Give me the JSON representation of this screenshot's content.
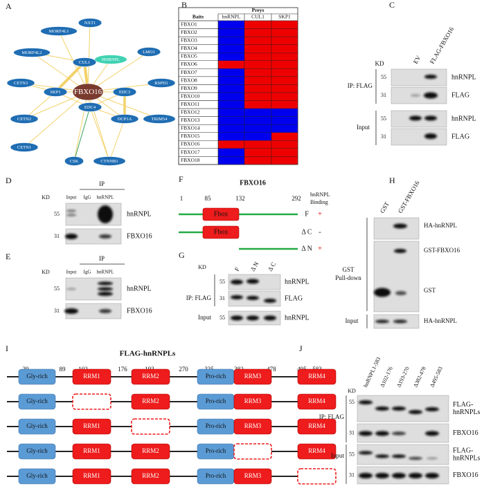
{
  "panel_labels": [
    "A",
    "B",
    "C",
    "D",
    "E",
    "F",
    "G",
    "H",
    "I",
    "J"
  ],
  "network": {
    "nodes": [
      "NXT1",
      "MORF4L1",
      "MORF4L2",
      "CUL1",
      "HNRNPL",
      "LMO1",
      "CETN3",
      "SKP1",
      "FBXO16",
      "EDC3",
      "RSPH1",
      "CETN2",
      "EDC4",
      "DCP1A",
      "TRIM54",
      "CETN1",
      "CSK",
      "CTNNB1"
    ]
  },
  "table": {
    "group_header": "Preys",
    "row_header": "Baits",
    "columns": [
      "hnRNPL",
      "CUL1",
      "SKP1"
    ],
    "rows": [
      {
        "bait": "FBXO1",
        "cells": [
          "#0000ee",
          "#ee0000",
          "#ee0000"
        ]
      },
      {
        "bait": "FBXO2",
        "cells": [
          "#0000ee",
          "#ee0000",
          "#ee0000"
        ]
      },
      {
        "bait": "FBXO3",
        "cells": [
          "#0000ee",
          "#ee0000",
          "#ee0000"
        ]
      },
      {
        "bait": "FBXO4",
        "cells": [
          "#0000ee",
          "#ee0000",
          "#ee0000"
        ]
      },
      {
        "bait": "FBXO5",
        "cells": [
          "#0000ee",
          "#ee0000",
          "#ee0000"
        ]
      },
      {
        "bait": "FBXO6",
        "cells": [
          "#ee0000",
          "#ee0000",
          "#ee0000"
        ]
      },
      {
        "bait": "FBXO7",
        "cells": [
          "#0000ee",
          "#ee0000",
          "#ee0000"
        ]
      },
      {
        "bait": "FBXO8",
        "cells": [
          "#0000ee",
          "#ee0000",
          "#ee0000"
        ]
      },
      {
        "bait": "FBXO9",
        "cells": [
          "#0000ee",
          "#ee0000",
          "#ee0000"
        ]
      },
      {
        "bait": "FBXO10",
        "cells": [
          "#0000ee",
          "#ee0000",
          "#ee0000"
        ]
      },
      {
        "bait": "FBXO11",
        "cells": [
          "#0000ee",
          "#ee0000",
          "#ee0000"
        ]
      },
      {
        "bait": "FBXO12",
        "cells": [
          "#0000ee",
          "#0000ee",
          "#0000ee"
        ]
      },
      {
        "bait": "FBXO13",
        "cells": [
          "#0000ee",
          "#0000ee",
          "#0000ee"
        ]
      },
      {
        "bait": "FBXO14",
        "cells": [
          "#0000ee",
          "#0000ee",
          "#0000ee"
        ]
      },
      {
        "bait": "FBXO15",
        "cells": [
          "#0000ee",
          "#0000ee",
          "#ee0000"
        ]
      },
      {
        "bait": "FBXO16",
        "cells": [
          "#ee0000",
          "#ee0000",
          "#ee0000"
        ]
      },
      {
        "bait": "FBXO17",
        "cells": [
          "#0000ee",
          "#ee0000",
          "#ee0000"
        ]
      },
      {
        "bait": "FBXO18",
        "cells": [
          "#0000ee",
          "#ee0000",
          "#ee0000"
        ]
      }
    ]
  },
  "panel_c": {
    "kd": "KD",
    "lanes": [
      "EV",
      "FLAG-FBXO16"
    ],
    "ip": "IP: FLAG",
    "input": "Input",
    "rows": [
      {
        "kd": "55",
        "label": "hnRNPL"
      },
      {
        "kd": "31",
        "label": "FLAG"
      },
      {
        "kd": "55",
        "label": "hnRNPL"
      },
      {
        "kd": "31",
        "label": "FLAG"
      }
    ]
  },
  "panel_d": {
    "kd": "KD",
    "ip": "IP",
    "lanes": [
      "Input",
      "IgG",
      "hnRNPL"
    ],
    "rows": [
      {
        "kd": "55",
        "label": "hnRNPL"
      },
      {
        "kd": "31",
        "label": "FBXO16"
      }
    ]
  },
  "panel_e": {
    "kd": "KD",
    "ip": "IP",
    "lanes": [
      "Input",
      "IgG",
      "hnRNPL"
    ],
    "rows": [
      {
        "kd": "55",
        "label": "hnRNPL"
      },
      {
        "kd": "31",
        "label": "FBXO16"
      }
    ]
  },
  "panel_f": {
    "title": "FBXO16",
    "positions": [
      "1",
      "85",
      "132",
      "292"
    ],
    "binding_header": [
      "hnRNPL",
      "Binding"
    ],
    "domain": "Fbox",
    "constructs": [
      {
        "name": "F",
        "binding": "+"
      },
      {
        "name": "Δ C",
        "binding": "-"
      },
      {
        "name": "Δ N",
        "binding": "+"
      }
    ]
  },
  "panel_g": {
    "kd": "KD",
    "lanes": [
      "F",
      "Δ N",
      "Δ C"
    ],
    "ip": "IP: FLAG",
    "input": "Input",
    "rows": [
      {
        "kd": "55",
        "label": "hnRNPL"
      },
      {
        "kd": "31",
        "label": "FLAG"
      },
      {
        "kd": "55",
        "label": "hnRNPL"
      }
    ]
  },
  "panel_h": {
    "lanes": [
      "GST",
      "GST-FBXO16"
    ],
    "pulldown": [
      "GST",
      "Pull-down"
    ],
    "input": "Input",
    "labels": [
      "HA-hnRNPL",
      "GST-FBXO16",
      "GST",
      "HA-hnRNPL"
    ]
  },
  "panel_i": {
    "title": "FLAG-hnRNPLs",
    "positions": [
      "39",
      "89",
      "102",
      "176",
      "193",
      "270",
      "335",
      "382",
      "478",
      "495",
      "583"
    ],
    "domains": [
      "Gly-rich",
      "RRM1",
      "RRM2",
      "Pro-rich",
      "RRM3",
      "RRM4"
    ],
    "deleted": [
      null,
      1,
      2,
      4,
      5
    ]
  },
  "panel_j": {
    "kd": "KD",
    "lanes": [
      "hnRNPL1-583",
      "Δ102-176",
      "Δ193-270",
      "Δ382-478",
      "Δ495-583"
    ],
    "ip": "IP: FLAG",
    "input": "Input",
    "rows": [
      {
        "kd": "55",
        "label": [
          "FLAG-",
          "hnRNPLs"
        ]
      },
      {
        "kd": "31",
        "label": [
          "FBXO16"
        ]
      },
      {
        "kd": "55",
        "label": [
          "FLAG-",
          "hnRNPLs"
        ]
      },
      {
        "kd": "31",
        "label": [
          "FBXO16"
        ]
      }
    ]
  }
}
